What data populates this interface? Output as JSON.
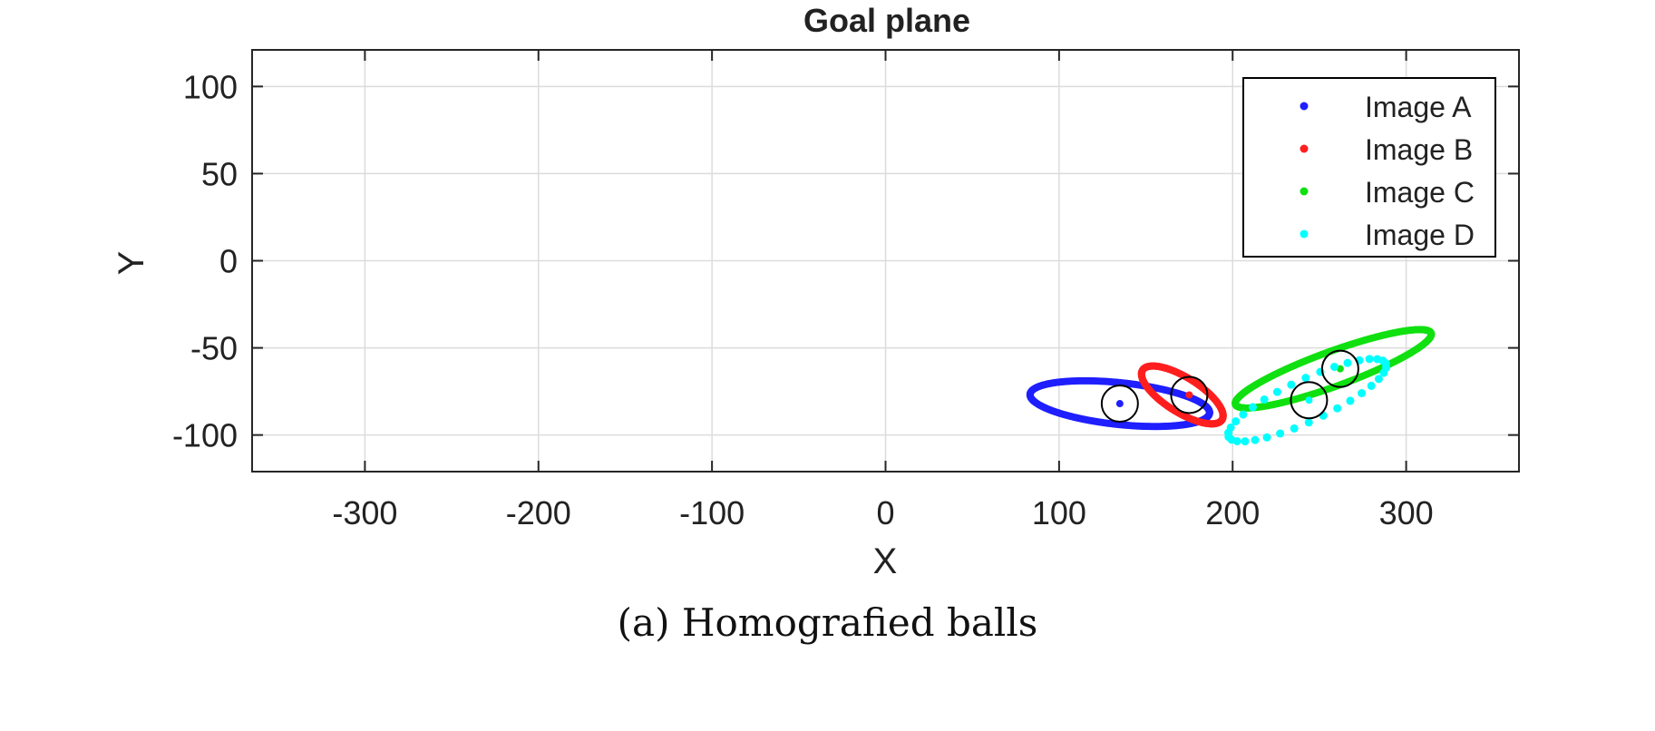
{
  "chart_data": {
    "type": "scatter",
    "title": "Goal plane",
    "xlabel": "X",
    "ylabel": "Y",
    "xlim": [
      -365,
      365
    ],
    "ylim": [
      -121,
      121
    ],
    "xticks": [
      -300,
      -200,
      -100,
      0,
      100,
      200,
      300
    ],
    "yticks": [
      -100,
      -50,
      0,
      50,
      100
    ],
    "grid": true,
    "legend_position": "top-right",
    "series": [
      {
        "name": "Image A",
        "color": "#1f1fff",
        "ellipse": {
          "cx": 135,
          "cy": -82,
          "rx": 52,
          "ry": 12,
          "angle": -6
        },
        "center": [
          135,
          -82
        ]
      },
      {
        "name": "Image B",
        "color": "#ff1f1f",
        "ellipse": {
          "cx": 171,
          "cy": -77,
          "rx": 27,
          "ry": 10,
          "angle": -32
        },
        "center": [
          175,
          -77
        ]
      },
      {
        "name": "Image C",
        "color": "#10e010",
        "ellipse": {
          "cx": 258,
          "cy": -62,
          "rx": 60,
          "ry": 10,
          "angle": 20
        },
        "center": [
          262,
          -62
        ]
      },
      {
        "name": "Image D",
        "color": "#00ffff",
        "ellipse": {
          "cx": 243,
          "cy": -80,
          "rx": 50,
          "ry": 12,
          "angle": 25
        },
        "center": [
          244,
          -80
        ]
      }
    ],
    "markers": [
      {
        "x": 135,
        "y": -82
      },
      {
        "x": 175,
        "y": -77
      },
      {
        "x": 244,
        "y": -80
      },
      {
        "x": 262,
        "y": -62
      }
    ]
  },
  "caption": "(a) Homografied balls"
}
